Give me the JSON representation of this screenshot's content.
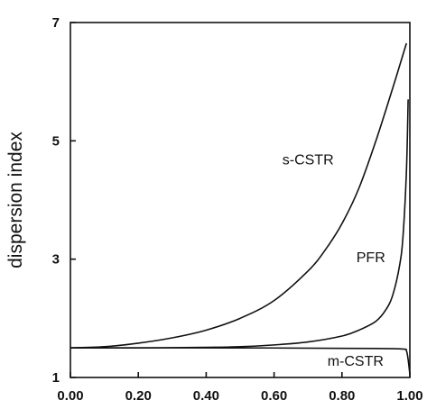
{
  "chart_data": {
    "type": "line",
    "title": "",
    "xlabel": "",
    "ylabel": "dispersion index",
    "xlim": [
      0,
      1
    ],
    "ylim": [
      1,
      7
    ],
    "x_ticks": [
      {
        "value": 0.0,
        "label": "0.00"
      },
      {
        "value": 0.2,
        "label": "0.20"
      },
      {
        "value": 0.4,
        "label": "0.40"
      },
      {
        "value": 0.6,
        "label": "0.60"
      },
      {
        "value": 0.8,
        "label": "0.80"
      },
      {
        "value": 1.0,
        "label": "1.00"
      }
    ],
    "y_ticks": [
      {
        "value": 1,
        "label": "1"
      },
      {
        "value": 3,
        "label": "3"
      },
      {
        "value": 5,
        "label": "5"
      },
      {
        "value": 7,
        "label": "7"
      }
    ],
    "grid": false,
    "series": [
      {
        "name": "s-CSTR",
        "label_at": {
          "x": 0.7,
          "y": 4.6
        },
        "x": [
          0.0,
          0.1,
          0.2,
          0.3,
          0.4,
          0.5,
          0.6,
          0.7,
          0.75,
          0.8,
          0.85,
          0.9,
          0.95,
          0.99
        ],
        "y": [
          1.5,
          1.52,
          1.58,
          1.67,
          1.8,
          2.0,
          2.3,
          2.8,
          3.15,
          3.6,
          4.2,
          5.0,
          5.9,
          6.65
        ]
      },
      {
        "name": "PFR",
        "label_at": {
          "x": 0.885,
          "y": 2.95
        },
        "x": [
          0.0,
          0.2,
          0.4,
          0.5,
          0.6,
          0.7,
          0.8,
          0.85,
          0.9,
          0.93,
          0.95,
          0.97,
          0.98,
          0.99,
          0.995
        ],
        "y": [
          1.5,
          1.5,
          1.51,
          1.52,
          1.55,
          1.6,
          1.7,
          1.8,
          1.95,
          2.15,
          2.4,
          2.9,
          3.4,
          4.5,
          5.7
        ]
      },
      {
        "name": "m-CSTR",
        "label_at": {
          "x": 0.84,
          "y": 1.2
        },
        "x": [
          0.0,
          0.5,
          0.9,
          0.98,
          0.99,
          0.995,
          1.0
        ],
        "y": [
          1.5,
          1.5,
          1.49,
          1.48,
          1.45,
          1.3,
          1.05
        ]
      }
    ]
  }
}
